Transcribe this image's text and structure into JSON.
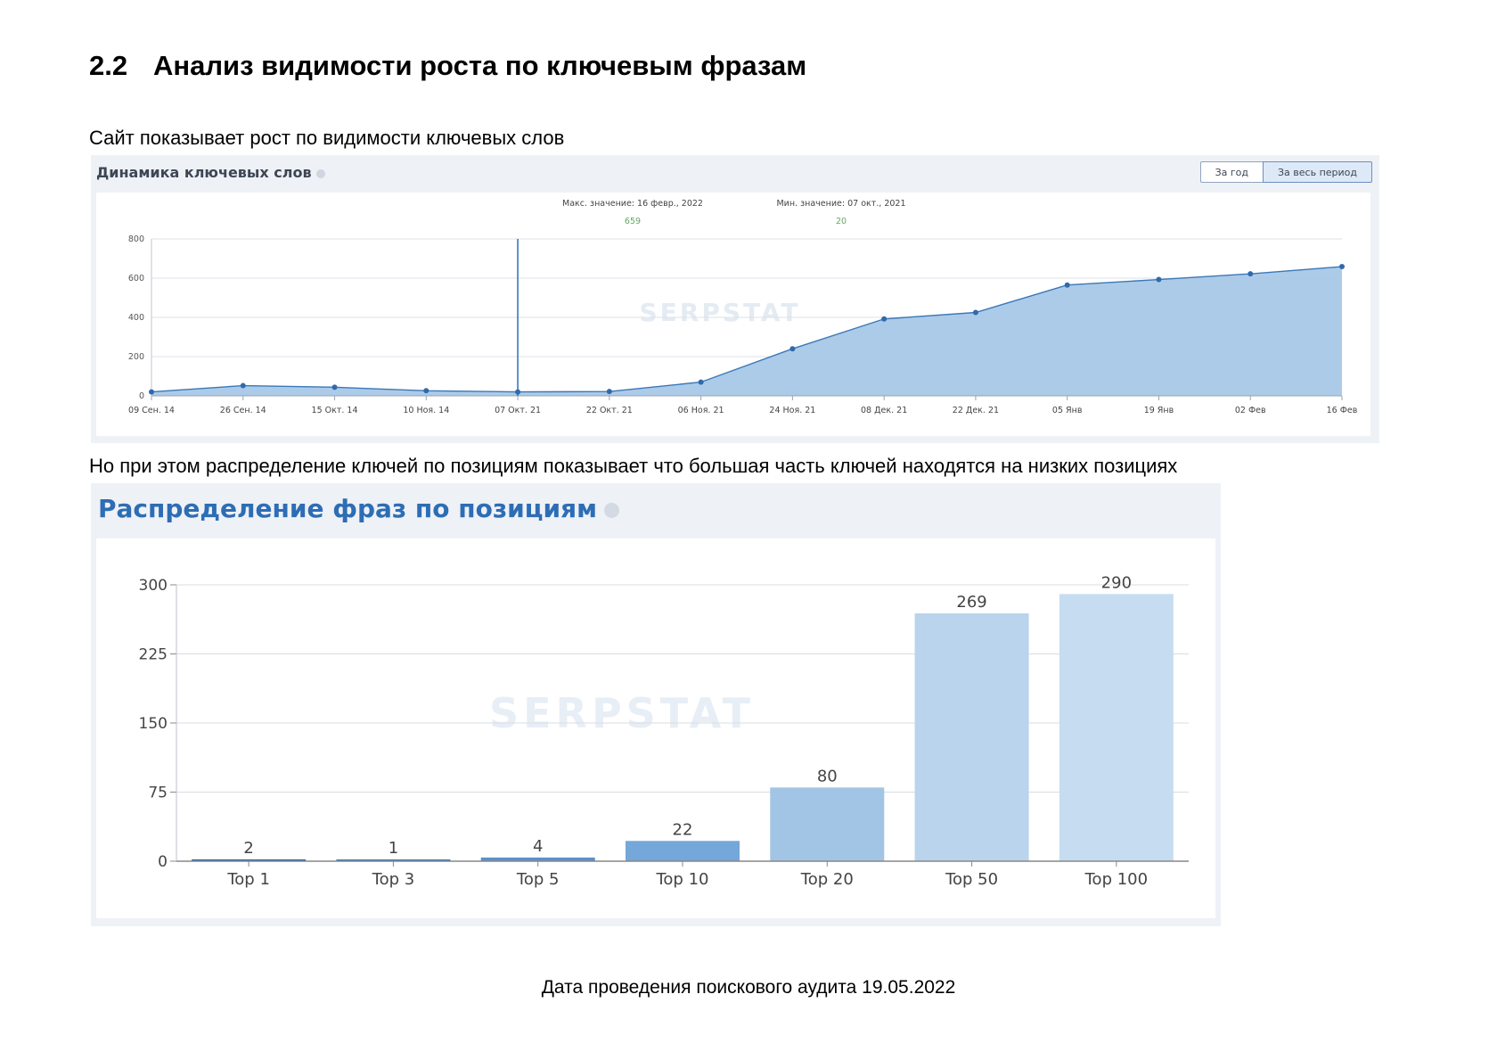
{
  "heading": {
    "number": "2.2",
    "title": "Анализ видимости роста по ключевым фразам"
  },
  "paragraph1": "Сайт показывает рост по видимости ключевых слов",
  "paragraph2": "Но при этом распределение ключей по позициям показывает что большая часть ключей находятся на низких позициях",
  "footer": "Дата проведения поискового аудита 19.05.2022",
  "watermark": "SERPSTAT",
  "colors": {
    "line": "#3a78b8",
    "area": "#a8c8e8",
    "annotation_value": "#66a865",
    "title_blue": "#2d6db5"
  },
  "widget1": {
    "title": "Динамика ключевых слов",
    "buttons": {
      "year": "За год",
      "all": "За весь период"
    },
    "active_button": "all"
  },
  "widget2": {
    "title": "Распределение фраз по позициям"
  },
  "chart_data": [
    {
      "type": "area",
      "categories": [
        "09 Сен. 14",
        "26 Сен. 14",
        "15 Окт. 14",
        "10 Ноя. 14",
        "07 Окт. 21",
        "22 Окт. 21",
        "06 Ноя. 21",
        "24 Ноя. 21",
        "08 Дек. 21",
        "22 Дек. 21",
        "05 Янв",
        "19 Янв",
        "02 Фев",
        "16 Фев"
      ],
      "values": [
        20,
        52,
        44,
        26,
        20,
        22,
        70,
        240,
        392,
        425,
        565,
        593,
        622,
        659
      ],
      "ylim": [
        0,
        800
      ],
      "yticks": [
        0,
        200,
        400,
        600,
        800
      ],
      "max_annotation": {
        "label": "Макс. значение: 16 февр., 2022",
        "value": "659"
      },
      "min_annotation": {
        "label": "Мин. значение: 07 окт., 2021",
        "value": "20"
      },
      "marker_category": "07 Окт. 21",
      "grid": true
    },
    {
      "type": "bar",
      "categories": [
        "Top 1",
        "Top 3",
        "Top 5",
        "Top 10",
        "Top 20",
        "Top 50",
        "Top 100"
      ],
      "values": [
        2,
        1,
        4,
        22,
        80,
        269,
        290
      ],
      "bar_colors": [
        "#2c6bb0",
        "#3d7bbf",
        "#5a90cc",
        "#74a7da",
        "#a2c5e5",
        "#b9d4ec",
        "#c6ddf1"
      ],
      "ylim": [
        0,
        300
      ],
      "yticks": [
        0,
        75,
        150,
        225,
        300
      ],
      "grid": true
    }
  ]
}
